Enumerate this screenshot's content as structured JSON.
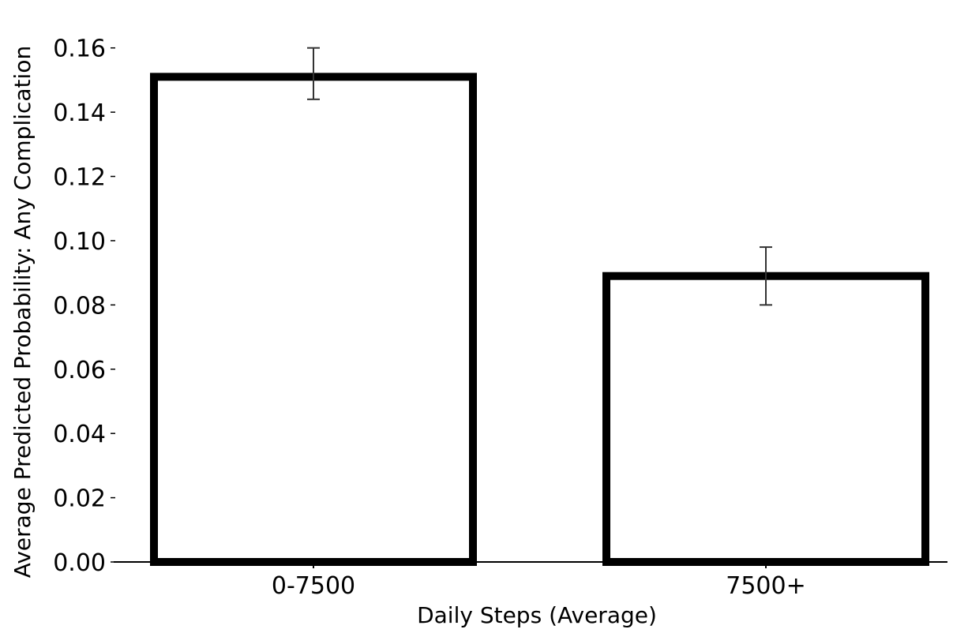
{
  "chart_data": {
    "type": "bar",
    "title": "",
    "xlabel": "Daily Steps (Average)",
    "ylabel": "Average Predicted Probability: Any Complication",
    "categories": [
      "0-7500",
      "7500+"
    ],
    "values": [
      0.151,
      0.089
    ],
    "error_low": [
      0.144,
      0.08
    ],
    "error_high": [
      0.16,
      0.098
    ],
    "ylim": [
      0,
      0.17
    ],
    "yticks": [
      0.0,
      0.02,
      0.04,
      0.06,
      0.08,
      0.1,
      0.12,
      0.14,
      0.16
    ],
    "ytick_labels": [
      "0.00",
      "0.02",
      "0.04",
      "0.06",
      "0.08",
      "0.10",
      "0.12",
      "0.14",
      "0.16"
    ],
    "grid": false,
    "legend": "none",
    "bar_fill": "#ffffff",
    "bar_edge": "#000000",
    "error_color": "#333333"
  }
}
